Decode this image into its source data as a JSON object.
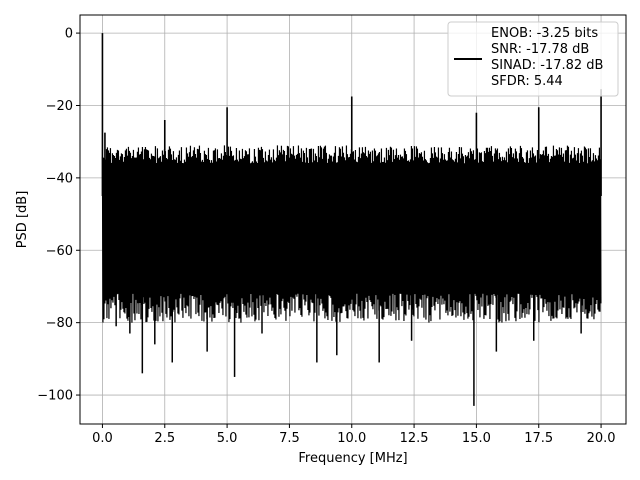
{
  "chart_data": {
    "type": "line",
    "title": "",
    "xlabel": "Frequency [MHz]",
    "ylabel": "PSD [dB]",
    "xlim": [
      -0.9,
      21.0
    ],
    "ylim": [
      -108,
      5
    ],
    "xticks": [
      0.0,
      2.5,
      5.0,
      7.5,
      10.0,
      12.5,
      15.0,
      17.5,
      20.0
    ],
    "xtick_labels": [
      "0.0",
      "2.5",
      "5.0",
      "7.5",
      "10.0",
      "12.5",
      "15.0",
      "17.5",
      "20.0"
    ],
    "yticks": [
      0,
      -20,
      -40,
      -60,
      -80,
      -100
    ],
    "ytick_labels": [
      "0",
      "−20",
      "−40",
      "−60",
      "−80",
      "−100"
    ],
    "grid": true,
    "legend_position": "top-right",
    "legend_entries": [
      "ENOB: -3.25 bits",
      "SNR: -17.78 dB",
      "SINAD: -17.82 dB",
      "SFDR: 5.44"
    ],
    "series_color": "#000000",
    "noise_floor": {
      "upper_envelope_db": -31,
      "lower_envelope_db": -72,
      "x_range": [
        0.0,
        20.0
      ]
    },
    "spurs": [
      {
        "x": 0.0,
        "y": 0.0
      },
      {
        "x": 0.1,
        "y": -27.5
      },
      {
        "x": 2.5,
        "y": -24.0
      },
      {
        "x": 5.0,
        "y": -20.5
      },
      {
        "x": 10.0,
        "y": -17.5
      },
      {
        "x": 15.0,
        "y": -22.0
      },
      {
        "x": 17.5,
        "y": -20.5
      },
      {
        "x": 20.0,
        "y": -15.5
      }
    ],
    "dips": [
      {
        "x": 0.55,
        "y": -81
      },
      {
        "x": 1.1,
        "y": -83
      },
      {
        "x": 1.6,
        "y": -94
      },
      {
        "x": 2.1,
        "y": -86
      },
      {
        "x": 2.8,
        "y": -91
      },
      {
        "x": 4.2,
        "y": -88
      },
      {
        "x": 5.3,
        "y": -95
      },
      {
        "x": 6.4,
        "y": -83
      },
      {
        "x": 8.6,
        "y": -91
      },
      {
        "x": 9.4,
        "y": -89
      },
      {
        "x": 11.1,
        "y": -91
      },
      {
        "x": 12.4,
        "y": -85
      },
      {
        "x": 14.9,
        "y": -103
      },
      {
        "x": 15.8,
        "y": -88
      },
      {
        "x": 17.3,
        "y": -85
      },
      {
        "x": 19.2,
        "y": -83
      }
    ]
  }
}
